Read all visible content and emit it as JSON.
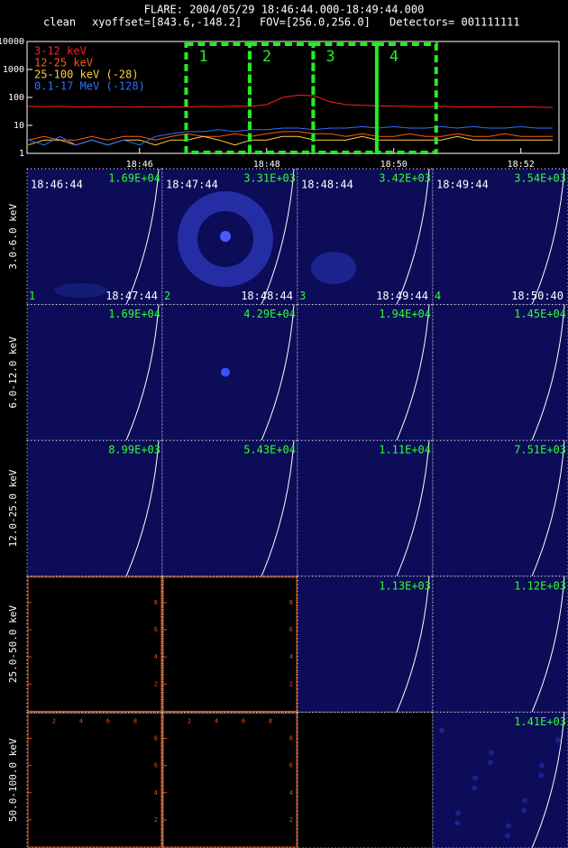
{
  "header": {
    "title": "FLARE: 2004/05/29 18:46:44.000-18:49:44.000",
    "method": "clean",
    "xyoffset": "xyoffset=[843.6,-148.2]",
    "fov": "FOV=[256.0,256.0]",
    "detectors": "Detectors= 001111111"
  },
  "chart_data": {
    "type": "line",
    "ylog": true,
    "x": [
      44.25,
      44.5,
      44.75,
      45,
      45.25,
      45.5,
      45.75,
      46,
      46.25,
      46.5,
      46.75,
      47,
      47.25,
      47.5,
      47.75,
      48,
      48.25,
      48.5,
      48.75,
      49,
      49.25,
      49.5,
      49.75,
      50,
      50.25,
      50.5,
      50.75,
      51,
      51.25,
      51.5,
      51.75,
      52,
      52.25,
      52.5
    ],
    "xlim": [
      44.23,
      52.6
    ],
    "xticks": [
      {
        "value": 46,
        "label": "18:46"
      },
      {
        "value": 48,
        "label": "18:48"
      },
      {
        "value": 50,
        "label": "18:50"
      },
      {
        "value": 52,
        "label": "18:52"
      }
    ],
    "ylim": [
      1,
      10000
    ],
    "yticks": [
      1,
      10,
      100,
      1000,
      10000
    ],
    "series": [
      {
        "name": "3-12 keV",
        "color": "#ff2020",
        "values": [
          48,
          47,
          48,
          46,
          47,
          46,
          45,
          46,
          45,
          47,
          46,
          48,
          47,
          49,
          48,
          55,
          100,
          120,
          115,
          70,
          55,
          52,
          50,
          49,
          48,
          47,
          48,
          46,
          47,
          46,
          45,
          46,
          45,
          44
        ]
      },
      {
        "name": "12-25 keV",
        "color": "#ff5a10",
        "values": [
          3,
          4,
          3,
          3,
          4,
          3,
          4,
          4,
          3,
          4,
          5,
          4,
          4,
          5,
          4,
          5,
          6,
          6,
          5,
          5,
          4,
          5,
          4,
          4,
          5,
          4,
          4,
          5,
          4,
          4,
          5,
          4,
          4,
          4
        ]
      },
      {
        "name": "25-100 keV (-28)",
        "color": "#ffd040",
        "values": [
          2,
          3,
          3,
          2,
          3,
          2,
          3,
          3,
          2,
          3,
          3,
          4,
          3,
          2,
          3,
          3,
          4,
          4,
          3,
          3,
          3,
          4,
          3,
          3,
          3,
          3,
          3,
          4,
          3,
          3,
          3,
          3,
          3,
          3
        ]
      },
      {
        "name": "0.1-17 MeV (-128)",
        "color": "#3070ff",
        "values": [
          3,
          2,
          4,
          2,
          3,
          2,
          3,
          2,
          4,
          5,
          6,
          6,
          7,
          6,
          7,
          7,
          8,
          8,
          7,
          8,
          8,
          9,
          8,
          9,
          8,
          8,
          9,
          8,
          9,
          8,
          8,
          9,
          8,
          8
        ]
      }
    ],
    "intervals": [
      {
        "label": "1",
        "start": 46.733,
        "end": 47.733
      },
      {
        "label": "2",
        "start": 47.733,
        "end": 48.733
      },
      {
        "label": "3",
        "start": 48.733,
        "end": 49.733
      },
      {
        "label": "4",
        "start": 49.733,
        "end": 50.667
      }
    ]
  },
  "panels": {
    "axis_ticks": [
      "2",
      "4",
      "6",
      "8"
    ],
    "rows": [
      {
        "label": "3.0-6.0 keV",
        "cells": [
          {
            "max": "1.69E+04",
            "start": "18:46:44",
            "end": "18:47:44",
            "index": "1"
          },
          {
            "max": "3.31E+03",
            "start": "18:47:44",
            "end": "18:48:44",
            "index": "2"
          },
          {
            "max": "3.42E+03",
            "start": "18:48:44",
            "end": "18:49:44",
            "index": "3"
          },
          {
            "max": "3.54E+03",
            "start": "18:49:44",
            "end": "18:50:40",
            "index": "4"
          }
        ]
      },
      {
        "label": "6.0-12.0 keV",
        "cells": [
          {
            "max": "1.69E+04"
          },
          {
            "max": "4.29E+04"
          },
          {
            "max": "1.94E+04"
          },
          {
            "max": "1.45E+04"
          }
        ]
      },
      {
        "label": "12.0-25.0 keV",
        "cells": [
          {
            "max": "8.99E+03"
          },
          {
            "max": "5.43E+04"
          },
          {
            "max": "1.11E+04"
          },
          {
            "max": "7.51E+03"
          }
        ]
      },
      {
        "label": "25.0-50.0 keV",
        "cells": [
          {
            "max": null,
            "axes": true
          },
          {
            "max": null,
            "axes": true
          },
          {
            "max": "1.13E+03"
          },
          {
            "max": "1.12E+03"
          }
        ]
      },
      {
        "label": "50.0-100.0 keV",
        "cells": [
          {
            "max": null,
            "axes": true
          },
          {
            "max": null,
            "axes": true
          },
          {
            "max": null
          },
          {
            "max": "1.41E+03"
          }
        ]
      }
    ]
  }
}
